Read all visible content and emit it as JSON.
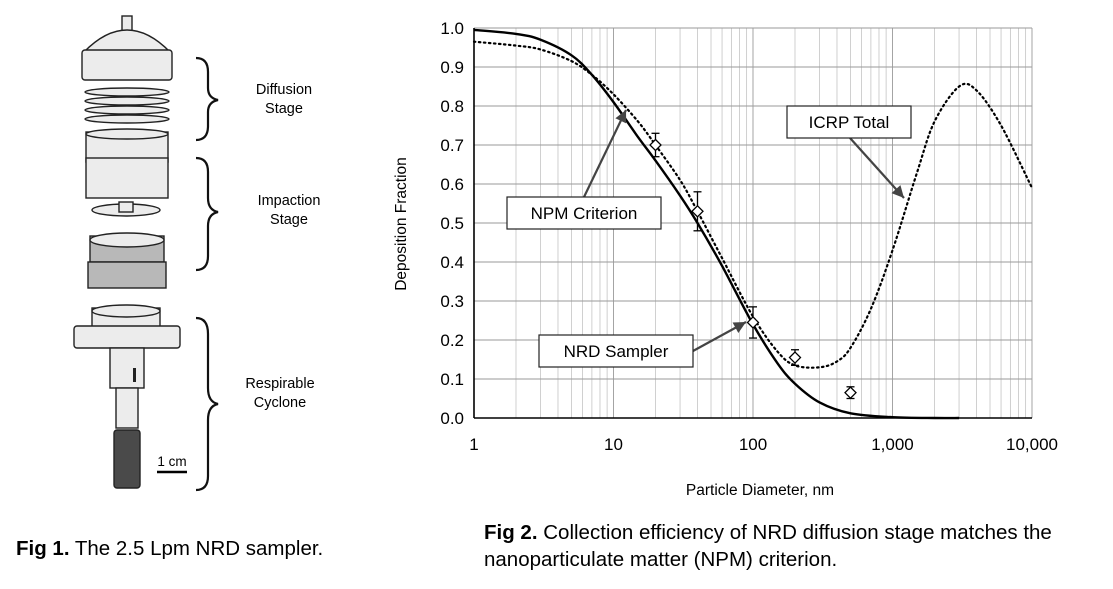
{
  "fig1": {
    "labels": {
      "diffusion_line1": "Diffusion",
      "diffusion_line2": "Stage",
      "impaction_line1": "Impaction",
      "impaction_line2": "Stage",
      "cyclone_line1": "Respirable",
      "cyclone_line2": "Cyclone",
      "scale": "1 cm"
    },
    "caption_bold": "Fig 1.",
    "caption_text": " The 2.5 Lpm NRD sampler."
  },
  "fig2": {
    "caption_bold": "Fig 2.",
    "caption_text": " Collection efficiency of NRD diffusion stage matches the nanoparticulate matter (NPM) criterion."
  },
  "chart_data": {
    "type": "line",
    "title": "",
    "xlabel": "Particle Diameter, nm",
    "ylabel": "Deposition Fraction",
    "xscale": "log",
    "xlim": [
      1,
      10000
    ],
    "ylim": [
      0,
      1
    ],
    "x_tick_labels": [
      "1",
      "10",
      "100",
      "1,000",
      "10,000"
    ],
    "y_tick_labels": [
      "0.0",
      "0.1",
      "0.2",
      "0.3",
      "0.4",
      "0.5",
      "0.6",
      "0.7",
      "0.8",
      "0.9",
      "1.0"
    ],
    "grid": true,
    "series": [
      {
        "name": "NPM Criterion",
        "style": "solid",
        "x": [
          1,
          2,
          3,
          5,
          7,
          10,
          15,
          20,
          30,
          40,
          60,
          100,
          150,
          200,
          300,
          500,
          1000,
          2000,
          3000
        ],
        "y": [
          0.995,
          0.985,
          0.97,
          0.93,
          0.88,
          0.81,
          0.72,
          0.66,
          0.57,
          0.5,
          0.39,
          0.24,
          0.14,
          0.088,
          0.04,
          0.012,
          0.002,
          0.0,
          0.0
        ]
      },
      {
        "name": "ICRP Total",
        "style": "dotted",
        "x": [
          1,
          2,
          3,
          5,
          7,
          10,
          15,
          20,
          30,
          40,
          60,
          100,
          150,
          200,
          300,
          400,
          500,
          700,
          1000,
          1500,
          2000,
          3000,
          4000,
          6000,
          10000
        ],
        "y": [
          0.965,
          0.955,
          0.945,
          0.915,
          0.88,
          0.83,
          0.76,
          0.7,
          0.61,
          0.53,
          0.41,
          0.26,
          0.17,
          0.135,
          0.13,
          0.145,
          0.18,
          0.28,
          0.43,
          0.63,
          0.76,
          0.85,
          0.84,
          0.75,
          0.59
        ]
      },
      {
        "name": "NRD Sampler",
        "style": "markers",
        "x": [
          20,
          40,
          100,
          200,
          500
        ],
        "y": [
          0.7,
          0.53,
          0.245,
          0.155,
          0.065
        ],
        "err": [
          0.03,
          0.05,
          0.04,
          0.02,
          0.015
        ]
      }
    ],
    "annotations": [
      {
        "text": "NPM Criterion"
      },
      {
        "text": "ICRP Total"
      },
      {
        "text": "NRD Sampler"
      }
    ]
  }
}
